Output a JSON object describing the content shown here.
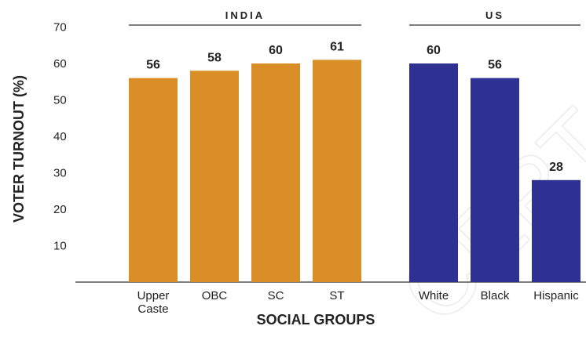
{
  "chart_data": {
    "type": "bar",
    "xlabel": "SOCIAL GROUPS",
    "ylabel": "VOTER TURNOUT (%)",
    "ylim": [
      0,
      70
    ],
    "yticks": [
      10,
      20,
      30,
      40,
      50,
      60,
      70
    ],
    "grid": false,
    "groups": [
      {
        "name": "INDIA",
        "color": "#D98E27",
        "categories": [
          [
            "Upper",
            "Caste"
          ],
          [
            "OBC"
          ],
          [
            "SC"
          ],
          [
            "ST"
          ]
        ],
        "values": [
          56,
          58,
          60,
          61
        ]
      },
      {
        "name": "US",
        "color": "#2E3191",
        "categories": [
          [
            "White"
          ],
          [
            "Black"
          ],
          [
            "Hispanic"
          ]
        ],
        "values": [
          60,
          56,
          28
        ]
      }
    ]
  },
  "watermark": "CERT"
}
